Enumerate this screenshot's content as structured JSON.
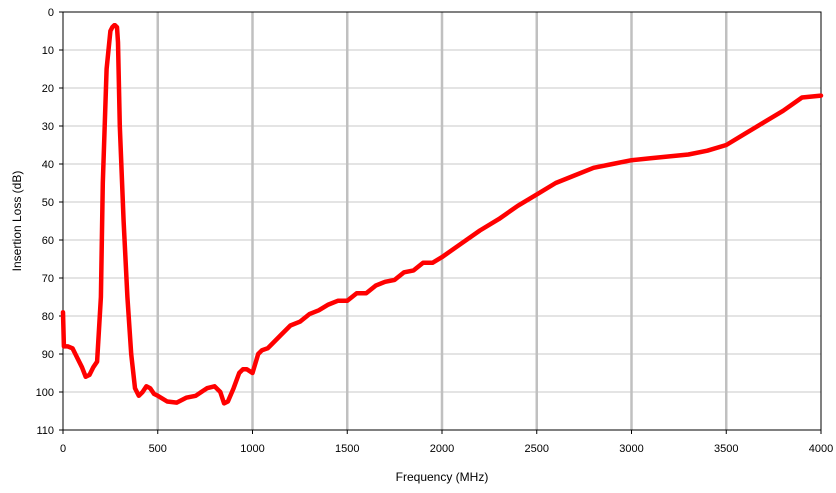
{
  "chart_data": {
    "type": "line",
    "xlabel": "Frequency (MHz)",
    "ylabel": "Insertion Loss (dB)",
    "xlim": [
      0,
      4000
    ],
    "ylim": [
      0,
      110
    ],
    "y_inverted": true,
    "x_ticks": [
      0,
      500,
      1000,
      1500,
      2000,
      2500,
      3000,
      3500,
      4000
    ],
    "y_ticks": [
      0,
      10,
      20,
      30,
      40,
      50,
      60,
      70,
      80,
      90,
      100,
      110
    ],
    "grid": {
      "vertical": true,
      "horizontal": true
    },
    "colors": {
      "series": "#ff0000",
      "vgrid": "#c0c0c0",
      "hgrid": "#c8c8c8",
      "axis": "#000000"
    },
    "series": [
      {
        "x": [
          0,
          5,
          25,
          50,
          75,
          100,
          120,
          140,
          160,
          180,
          200,
          210,
          230,
          250,
          260,
          270,
          275,
          285,
          290,
          300,
          320,
          340,
          360,
          380,
          400,
          420,
          440,
          460,
          480,
          500,
          550,
          600,
          650,
          700,
          730,
          760,
          800,
          830,
          850,
          870,
          900,
          930,
          950,
          970,
          1000,
          1030,
          1050,
          1080,
          1100,
          1150,
          1200,
          1250,
          1300,
          1350,
          1400,
          1450,
          1500,
          1550,
          1600,
          1650,
          1700,
          1750,
          1800,
          1850,
          1900,
          1950,
          2000,
          2100,
          2200,
          2300,
          2400,
          2500,
          2600,
          2700,
          2800,
          2900,
          3000,
          3100,
          3200,
          3300,
          3400,
          3500,
          3600,
          3700,
          3800,
          3900,
          4000
        ],
        "y": [
          79,
          88,
          88,
          88.5,
          91,
          93.5,
          96,
          95.5,
          93.5,
          92,
          75,
          45,
          15,
          5,
          4,
          3.5,
          3.5,
          4,
          8,
          30,
          55,
          75,
          90,
          99,
          101,
          100,
          98.5,
          99,
          100.5,
          101,
          102.5,
          102.8,
          101.5,
          101,
          100,
          99,
          98.5,
          100,
          103,
          102.5,
          99,
          95,
          94,
          94,
          95,
          90,
          89,
          88.5,
          87.5,
          85,
          82.5,
          81.5,
          79.5,
          78.5,
          77,
          76,
          76,
          74,
          74,
          72,
          71,
          70.5,
          68.5,
          68,
          66,
          66,
          64.5,
          61,
          57.5,
          54.5,
          51,
          48,
          45,
          43,
          41,
          40,
          39,
          38.5,
          38,
          37.5,
          36.5,
          35,
          32,
          29,
          26,
          22.5,
          22
        ]
      }
    ]
  }
}
